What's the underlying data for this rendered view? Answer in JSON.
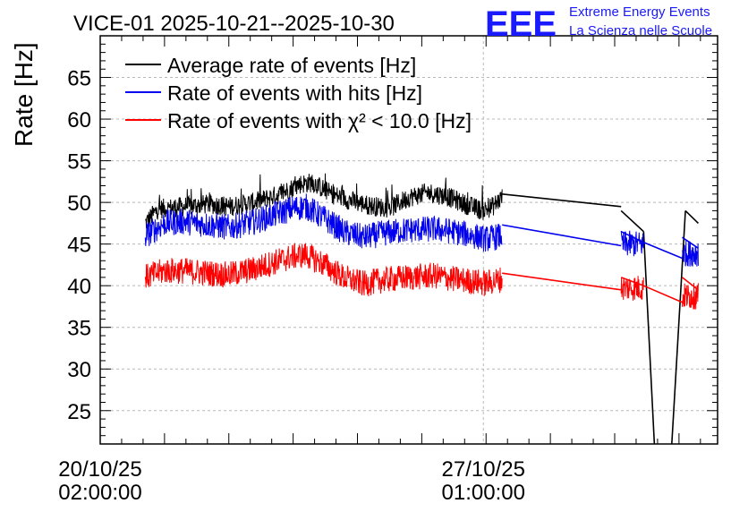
{
  "chart_data": {
    "type": "line",
    "title": "VICE-01 2025-10-21--2025-10-30",
    "xlabel": "",
    "ylabel": "Rate [Hz]",
    "ylim": [
      21,
      70
    ],
    "yticks": [
      25,
      30,
      35,
      40,
      45,
      50,
      55,
      60,
      65
    ],
    "grid": true,
    "legend_position": "top-left",
    "x_unit": "days since 20/10/25 02:00:00",
    "xlim": [
      0,
      9.6
    ],
    "x_ticks": [
      {
        "x": 0.0,
        "date": "20/10/25",
        "time": "02:00:00"
      },
      {
        "x": 5.958,
        "date": "27/10/25",
        "time": "01:00:00"
      }
    ],
    "series": [
      {
        "name": "Average rate of events [Hz]",
        "color": "#000000",
        "noise": 1.2,
        "points": [
          [
            0.7,
            47.5
          ],
          [
            0.9,
            49.2
          ],
          [
            1.3,
            49.5
          ],
          [
            1.7,
            49.8
          ],
          [
            2.0,
            49.5
          ],
          [
            2.4,
            50.0
          ],
          [
            2.8,
            51.0
          ],
          [
            3.1,
            52.2
          ],
          [
            3.3,
            52.4
          ],
          [
            3.6,
            51.0
          ],
          [
            3.9,
            50.2
          ],
          [
            4.2,
            49.6
          ],
          [
            4.5,
            49.3
          ],
          [
            4.8,
            50.6
          ],
          [
            5.1,
            51.2
          ],
          [
            5.4,
            50.7
          ],
          [
            5.7,
            49.7
          ],
          [
            5.95,
            49.0
          ],
          [
            6.1,
            49.5
          ],
          [
            6.25,
            50.6
          ]
        ],
        "segments": [
          [
            [
              6.25,
              51.0
            ],
            [
              8.1,
              49.5
            ]
          ],
          [
            [
              8.1,
              49.0
            ],
            [
              8.45,
              46.5
            ]
          ],
          [
            [
              8.45,
              46.5
            ],
            [
              8.65,
              16.0
            ]
          ],
          [
            [
              8.85,
              16.0
            ],
            [
              9.1,
              49.0
            ]
          ],
          [
            [
              9.1,
              49.0
            ],
            [
              9.3,
              47.5
            ]
          ]
        ]
      },
      {
        "name": "Rate of events with hits [Hz]",
        "color": "#0000ee",
        "noise": 1.6,
        "points": [
          [
            0.7,
            46.0
          ],
          [
            1.0,
            47.5
          ],
          [
            1.3,
            47.7
          ],
          [
            1.7,
            47.3
          ],
          [
            2.0,
            47.0
          ],
          [
            2.4,
            47.7
          ],
          [
            2.7,
            48.5
          ],
          [
            3.0,
            49.3
          ],
          [
            3.2,
            49.5
          ],
          [
            3.5,
            48.0
          ],
          [
            3.8,
            46.4
          ],
          [
            4.1,
            45.8
          ],
          [
            4.4,
            46.3
          ],
          [
            4.8,
            46.7
          ],
          [
            5.2,
            46.8
          ],
          [
            5.5,
            46.5
          ],
          [
            5.8,
            46.0
          ],
          [
            6.0,
            45.6
          ],
          [
            6.25,
            46.0
          ]
        ],
        "segments": [
          [
            [
              6.25,
              47.3
            ],
            [
              8.1,
              44.8
            ]
          ],
          [
            [
              8.1,
              46.5
            ],
            [
              8.45,
              45.2
            ]
          ],
          [
            [
              8.45,
              45.2
            ],
            [
              9.05,
              43.3
            ]
          ],
          [
            [
              9.05,
              45.8
            ],
            [
              9.3,
              44.5
            ]
          ]
        ]
      },
      {
        "name": "Rate of events with χ² < 10.0 [Hz]",
        "color": "#ff0000",
        "noise": 1.6,
        "points": [
          [
            0.7,
            41.0
          ],
          [
            1.0,
            41.8
          ],
          [
            1.3,
            41.8
          ],
          [
            1.7,
            41.5
          ],
          [
            2.0,
            41.3
          ],
          [
            2.4,
            42.0
          ],
          [
            2.7,
            42.8
          ],
          [
            3.0,
            43.5
          ],
          [
            3.2,
            43.7
          ],
          [
            3.5,
            42.5
          ],
          [
            3.8,
            40.9
          ],
          [
            4.1,
            40.2
          ],
          [
            4.4,
            40.7
          ],
          [
            4.8,
            41.0
          ],
          [
            5.2,
            41.2
          ],
          [
            5.5,
            40.8
          ],
          [
            5.8,
            40.5
          ],
          [
            6.0,
            40.3
          ],
          [
            6.25,
            40.8
          ]
        ],
        "segments": [
          [
            [
              6.25,
              41.5
            ],
            [
              8.1,
              39.5
            ]
          ],
          [
            [
              8.1,
              41.0
            ],
            [
              8.45,
              40.0
            ]
          ],
          [
            [
              8.45,
              40.0
            ],
            [
              9.05,
              38.0
            ]
          ],
          [
            [
              9.05,
              41.0
            ],
            [
              9.3,
              39.5
            ]
          ]
        ]
      }
    ],
    "extra_noise_ranges": [
      [
        8.1,
        8.45
      ],
      [
        9.05,
        9.3
      ]
    ]
  },
  "branding": {
    "logo_text": "EEE",
    "line1": "Extreme Energy Events",
    "line2": "La Scienza nelle Scuole",
    "color": "#1a1aff"
  }
}
